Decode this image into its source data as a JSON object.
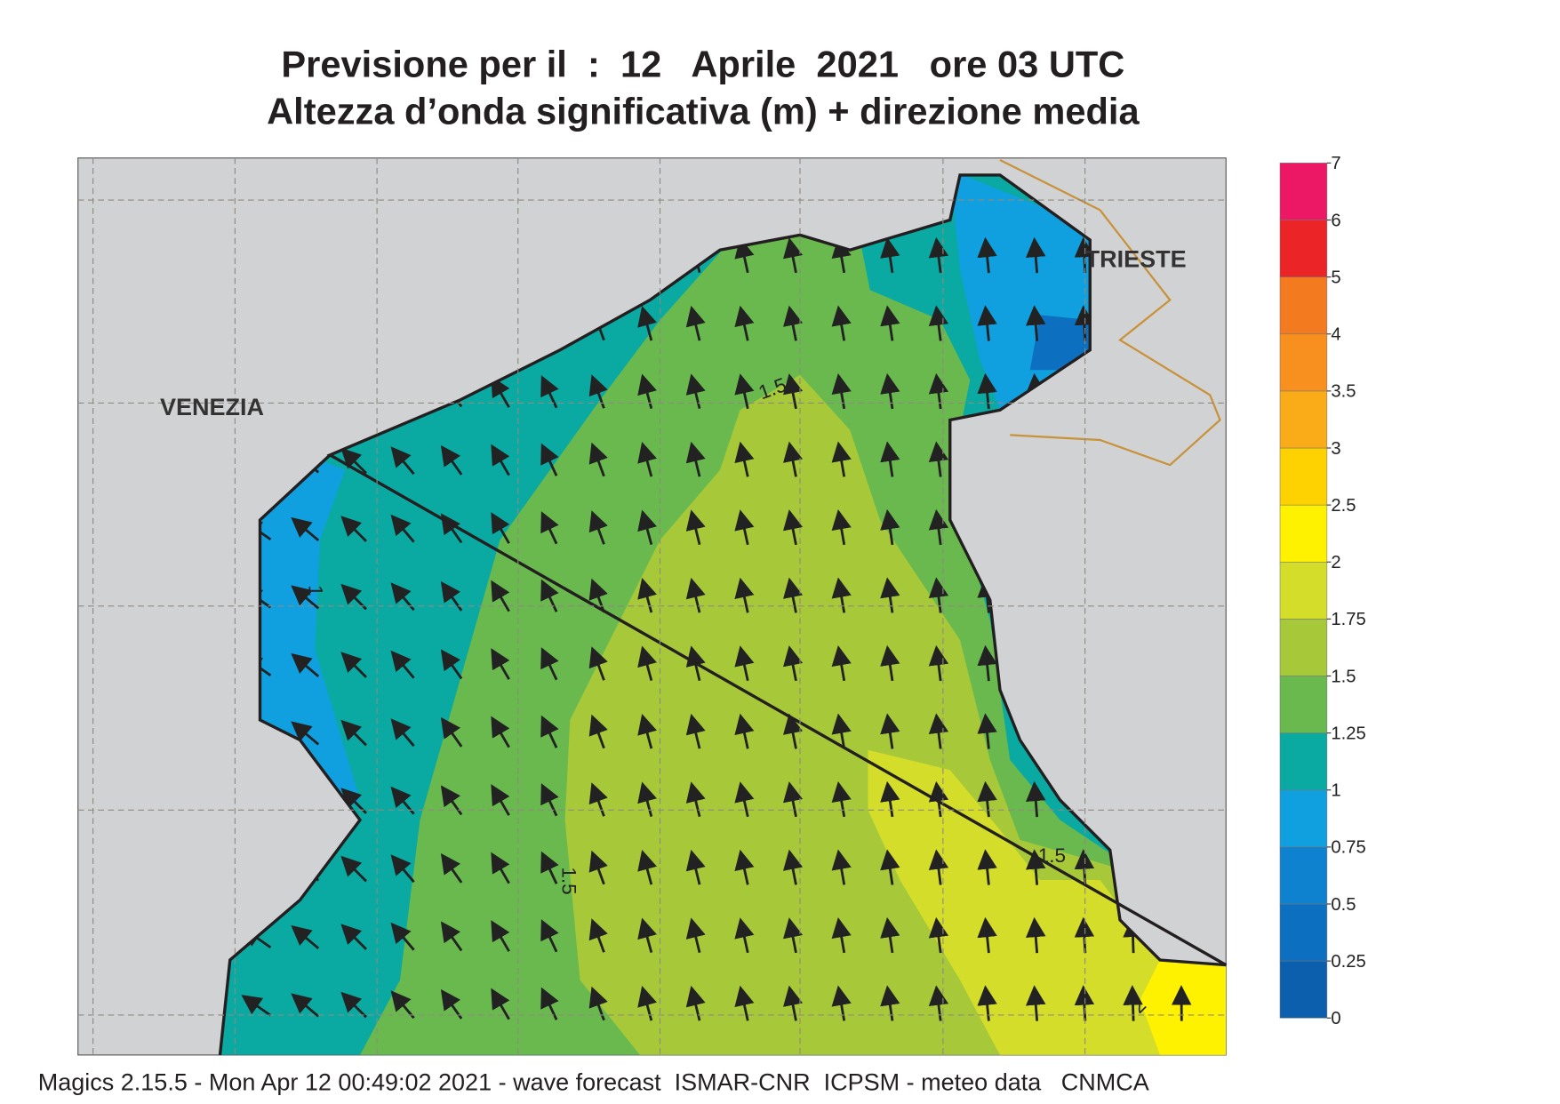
{
  "header": {
    "title": "Previsione per il  :  12   Aprile  2021   ore 03 UTC",
    "subtitle": "Altezza d’onda significativa (m) + direzione media"
  },
  "map": {
    "cities": [
      "VENEZIA",
      "TRIESTE"
    ],
    "contour_labels": [
      "1.5",
      "1",
      "1.5",
      "1.5",
      "2"
    ]
  },
  "colorbar": {
    "ticks": [
      0,
      0.25,
      0.5,
      0.75,
      1,
      1.25,
      1.5,
      1.75,
      2,
      2.5,
      3,
      3.5,
      4,
      5,
      6,
      7
    ],
    "colors": [
      "#0b5fad",
      "#0d6fc0",
      "#0f82cf",
      "#10a0e0",
      "#0aa9a2",
      "#6ab94e",
      "#a7c939",
      "#d4de2a",
      "#fff200",
      "#fdd200",
      "#f9ab18",
      "#f7901e",
      "#f47a20",
      "#ea2427",
      "#ec1866"
    ]
  },
  "footer": "Magics 2.15.5 - Mon Apr 12 00:49:02 2021 - wave forecast  ISMAR-CNR  ICPSM - meteo data   CNMCA"
}
